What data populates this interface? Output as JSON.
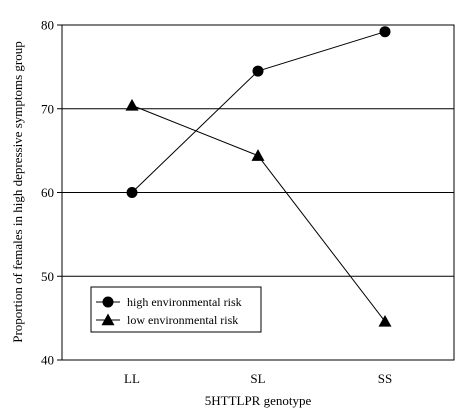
{
  "chart_data": {
    "type": "line",
    "title": "",
    "xlabel": "5HTTLPR genotype",
    "ylabel": "Proportion of females in high depressive symptoms group",
    "categories": [
      "LL",
      "SL",
      "SS"
    ],
    "ylim": [
      40,
      80
    ],
    "yticks": [
      40,
      50,
      60,
      70,
      80
    ],
    "grid": "horizontal",
    "legend_position": "bottom-left",
    "series": [
      {
        "name": "high environmental risk",
        "marker": "circle",
        "color": "#000000",
        "values": [
          60,
          74.5,
          79.2
        ]
      },
      {
        "name": "low environmental risk",
        "marker": "triangle",
        "color": "#000000",
        "values": [
          70.4,
          64.4,
          44.6
        ]
      }
    ]
  }
}
